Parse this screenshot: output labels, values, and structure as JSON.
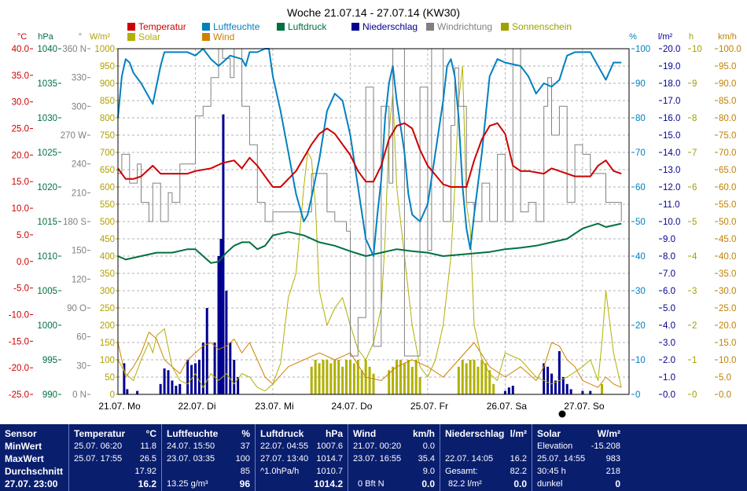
{
  "title": "Woche 21.07.14 - 27.07.14 (KW30)",
  "legend": [
    {
      "label": "Temperatur",
      "color": "#cc0000"
    },
    {
      "label": "Luftfeuchte",
      "color": "#0080c0"
    },
    {
      "label": "Luftdruck",
      "color": "#007040"
    },
    {
      "label": "Niederschlag",
      "color": "#000090"
    },
    {
      "label": "Windrichtung",
      "color": "#808080"
    },
    {
      "label": "Sonnenschein",
      "color": "#a0a000"
    },
    {
      "label": "Solar",
      "color": "#b0b000"
    },
    {
      "label": "Wind",
      "color": "#d08000"
    }
  ],
  "axes": {
    "temp": {
      "unit": "°C",
      "color": "#cc0000",
      "ticks": [
        "40.0",
        "35.0",
        "30.0",
        "25.0",
        "20.0",
        "15.0",
        "10.0",
        "5.0",
        "0.0",
        "-5.0",
        "-10.0",
        "-15.0",
        "-20.0",
        "-25.0"
      ]
    },
    "pressure": {
      "unit": "hPa",
      "color": "#007040",
      "ticks": [
        "1040",
        "1035",
        "1030",
        "1025",
        "1020",
        "1015",
        "1010",
        "1005",
        "1000",
        "995",
        "990"
      ]
    },
    "winddir": {
      "unit": "°",
      "color": "#808080",
      "ticks": [
        "360 N",
        "330",
        "300",
        "270 W",
        "240",
        "210",
        "180 S",
        "150",
        "120",
        "90 O",
        "60",
        "30",
        "0 N"
      ]
    },
    "solar": {
      "unit": "W/m²",
      "color": "#b0a000",
      "ticks": [
        "1000",
        "950",
        "900",
        "850",
        "800",
        "750",
        "700",
        "650",
        "600",
        "550",
        "500",
        "450",
        "400",
        "350",
        "300",
        "250",
        "200",
        "150",
        "100",
        "50",
        "0"
      ]
    },
    "humidity": {
      "unit": "%",
      "color": "#0080c0",
      "ticks": [
        "100",
        "90",
        "80",
        "70",
        "60",
        "50",
        "40",
        "30",
        "20",
        "10",
        "0"
      ]
    },
    "rain": {
      "unit": "l/m²",
      "color": "#000090",
      "ticks": [
        "20.0",
        "19.0",
        "18.0",
        "17.0",
        "16.0",
        "15.0",
        "14.0",
        "13.0",
        "12.0",
        "11.0",
        "10.0",
        "9.0",
        "8.0",
        "7.0",
        "6.0",
        "5.0",
        "4.0",
        "3.0",
        "2.0",
        "1.0",
        "0.0"
      ]
    },
    "sunshine": {
      "unit": "h",
      "color": "#a0a000",
      "ticks": [
        "10",
        "9",
        "8",
        "7",
        "6",
        "5",
        "4",
        "3",
        "2",
        "1",
        "0"
      ]
    },
    "wind": {
      "unit": "km/h",
      "color": "#c08000",
      "ticks": [
        "100.0",
        "95.0",
        "90.0",
        "85.0",
        "80.0",
        "75.0",
        "70.0",
        "65.0",
        "60.0",
        "55.0",
        "50.0",
        "45.0",
        "40.0",
        "35.0",
        "30.0",
        "25.0",
        "20.0",
        "15.0",
        "10.0",
        "5.0",
        "0.0"
      ]
    }
  },
  "chart_data": {
    "type": "line",
    "title": "Woche 21.07.14 - 27.07.14 (KW30)",
    "categories": [
      "21.07. Mo",
      "22.07. Di",
      "23.07. Mi",
      "24.07. Do",
      "25.07. Fr",
      "26.07. Sa",
      "27.07. So"
    ],
    "grid": true,
    "series": [
      {
        "name": "Temperatur",
        "unit": "°C",
        "ylim": [
          -25,
          40
        ],
        "x": [
          0,
          0.1,
          0.2,
          0.3,
          0.45,
          0.55,
          0.7,
          0.8,
          0.9,
          1.0,
          1.2,
          1.35,
          1.5,
          1.6,
          1.7,
          1.8,
          1.9,
          2.0,
          2.1,
          2.3,
          2.5,
          2.6,
          2.7,
          2.8,
          3.0,
          3.1,
          3.2,
          3.3,
          3.4,
          3.5,
          3.6,
          3.7,
          3.8,
          3.9,
          4.0,
          4.2,
          4.3,
          4.5,
          4.6,
          4.7,
          4.8,
          4.9,
          5.0,
          5.1,
          5.2,
          5.3,
          5.5,
          5.6,
          5.7,
          5.8,
          5.9,
          6.0,
          6.1,
          6.2,
          6.3,
          6.4,
          6.5
        ],
        "y": [
          17.5,
          15.5,
          15.5,
          16,
          18,
          16.5,
          16.5,
          16.5,
          16.5,
          17,
          17.5,
          18.5,
          19,
          17.5,
          19.5,
          18,
          16,
          14,
          14,
          17,
          22,
          24,
          25,
          24,
          20,
          17,
          15,
          15,
          18,
          23,
          25.5,
          26,
          25,
          21,
          18,
          14.5,
          14,
          14,
          19,
          23,
          25.5,
          26,
          24,
          18,
          17,
          17,
          16.5,
          17.5,
          17,
          16.5,
          16,
          16,
          16,
          18,
          19,
          17,
          16.5
        ]
      },
      {
        "name": "Luftfeuchte",
        "unit": "%",
        "ylim": [
          0,
          100
        ],
        "x": [
          0,
          0.05,
          0.1,
          0.15,
          0.2,
          0.3,
          0.45,
          0.55,
          0.6,
          0.7,
          0.8,
          0.9,
          1.0,
          1.1,
          1.2,
          1.3,
          1.45,
          1.6,
          1.65,
          1.7,
          1.8,
          1.9,
          1.95,
          2.0,
          2.1,
          2.2,
          2.3,
          2.4,
          2.45,
          2.5,
          2.6,
          2.7,
          2.8,
          2.9,
          3.0,
          3.1,
          3.2,
          3.3,
          3.35,
          3.4,
          3.45,
          3.5,
          3.55,
          3.6,
          3.7,
          3.75,
          3.8,
          3.9,
          4.0,
          4.1,
          4.2,
          4.25,
          4.3,
          4.35,
          4.4,
          4.45,
          4.5,
          4.55,
          4.6,
          4.7,
          4.8,
          4.9,
          5.0,
          5.2,
          5.3,
          5.4,
          5.5,
          5.6,
          5.7,
          5.8,
          5.9,
          6.0,
          6.1,
          6.2,
          6.3,
          6.4,
          6.5
        ],
        "y": [
          80,
          92,
          97,
          96,
          93,
          90,
          84,
          95,
          99,
          99,
          99,
          99,
          98,
          100,
          97,
          95,
          98,
          97,
          95,
          99,
          99,
          100,
          100,
          92,
          82,
          70,
          58,
          50,
          52,
          57,
          68,
          82,
          87,
          85,
          75,
          60,
          45,
          40,
          52,
          62,
          80,
          90,
          95,
          85,
          70,
          58,
          52,
          50,
          55,
          70,
          85,
          95,
          97,
          92,
          80,
          60,
          48,
          42,
          52,
          70,
          92,
          97,
          96,
          95,
          92,
          87,
          90,
          89,
          91,
          98,
          99,
          99,
          99,
          95,
          91,
          96,
          96
        ]
      },
      {
        "name": "Luftdruck",
        "unit": "hPa",
        "ylim": [
          990,
          1040
        ],
        "x": [
          0,
          0.1,
          0.3,
          0.5,
          0.7,
          0.9,
          1.0,
          1.1,
          1.2,
          1.3,
          1.4,
          1.5,
          1.6,
          1.7,
          1.8,
          1.9,
          2.0,
          2.2,
          2.4,
          2.6,
          2.8,
          3.0,
          3.2,
          3.4,
          3.6,
          3.8,
          4.0,
          4.2,
          4.4,
          4.6,
          4.8,
          5.0,
          5.2,
          5.4,
          5.6,
          5.8,
          6.0,
          6.2,
          6.3,
          6.5
        ],
        "y": [
          1010,
          1009.5,
          1010,
          1010.5,
          1010.5,
          1011,
          1011,
          1010,
          1009,
          1009.2,
          1010.5,
          1011.5,
          1012,
          1012,
          1011,
          1011.5,
          1013,
          1013.5,
          1013,
          1012,
          1011.5,
          1010.7,
          1010,
          1010.5,
          1011,
          1010.7,
          1010.5,
          1010,
          1010.2,
          1010.4,
          1010.6,
          1011,
          1011.2,
          1011.5,
          1012,
          1012.5,
          1014,
          1014.7,
          1014.2,
          1014.7
        ]
      },
      {
        "name": "Niederschlag",
        "unit": "l/m²",
        "ylim": [
          0,
          20
        ],
        "x": [
          0.08,
          0.12,
          0.25,
          0.55,
          0.6,
          0.65,
          0.7,
          0.75,
          0.8,
          0.9,
          0.95,
          1.0,
          1.05,
          1.1,
          1.15,
          1.25,
          1.3,
          1.33,
          1.36,
          1.4,
          1.45,
          1.5,
          1.55,
          5.0,
          5.05,
          5.1,
          5.5,
          5.55,
          5.6,
          5.65,
          5.7,
          5.75,
          5.8,
          5.85,
          6.0,
          6.1
        ],
        "y": [
          1.8,
          0.3,
          0.2,
          0.6,
          1.5,
          1.4,
          0.8,
          0.5,
          0.6,
          2.0,
          1.7,
          1.8,
          2.0,
          3.0,
          5.0,
          3.0,
          8.0,
          9.0,
          16.2,
          6.0,
          3.0,
          2.0,
          1.0,
          0.2,
          0.4,
          0.5,
          1.8,
          1.6,
          1.2,
          0.8,
          2.5,
          1.0,
          0.6,
          0.3,
          0.2,
          0.2
        ]
      },
      {
        "name": "Windrichtung",
        "unit": "°",
        "ylim": [
          0,
          360
        ],
        "x": [
          0,
          0.05,
          0.15,
          0.25,
          0.3,
          0.4,
          0.45,
          0.55,
          0.65,
          0.7,
          0.8,
          1.0,
          1.1,
          1.2,
          1.3,
          1.35,
          1.45,
          1.5,
          1.6,
          1.7,
          1.8,
          1.9,
          2.0,
          2.5,
          2.7,
          2.8,
          2.95,
          3.0,
          3.1,
          3.2,
          3.3,
          3.4,
          3.5,
          3.55,
          3.7,
          3.9,
          4.0,
          4.05,
          4.2,
          4.3,
          4.35,
          4.4,
          4.5,
          4.6,
          4.7,
          4.8,
          4.9,
          5.0,
          5.1,
          5.2,
          5.3,
          5.4,
          5.5,
          5.55,
          5.6,
          5.7,
          5.8,
          5.9,
          6.0,
          6.1,
          6.3,
          6.5
        ],
        "y": [
          230,
          250,
          220,
          240,
          200,
          180,
          220,
          180,
          210,
          200,
          240,
          290,
          300,
          330,
          360,
          350,
          330,
          360,
          300,
          260,
          200,
          180,
          190,
          230,
          190,
          180,
          170,
          40,
          80,
          320,
          50,
          300,
          220,
          360,
          40,
          320,
          150,
          360,
          180,
          280,
          340,
          300,
          200,
          180,
          220,
          180,
          250,
          180,
          360,
          190,
          200,
          180,
          300,
          330,
          270,
          300,
          200,
          260,
          250,
          230,
          200,
          180
        ]
      },
      {
        "name": "Solar",
        "unit": "W/m²",
        "ylim": [
          0,
          1000
        ],
        "x": [
          0,
          0.1,
          0.2,
          0.3,
          0.4,
          0.45,
          0.5,
          0.6,
          0.7,
          0.8,
          0.9,
          1.0,
          1.1,
          1.2,
          1.3,
          1.4,
          1.5,
          1.6,
          1.7,
          1.8,
          1.9,
          2.0,
          2.1,
          2.2,
          2.3,
          2.4,
          2.45,
          2.5,
          2.55,
          2.6,
          2.7,
          2.8,
          2.9,
          3.0,
          3.1,
          3.2,
          3.3,
          3.4,
          3.45,
          3.5,
          3.55,
          3.6,
          3.7,
          3.8,
          3.9,
          4.0,
          4.1,
          4.2,
          4.3,
          4.35,
          4.4,
          4.45,
          4.5,
          4.55,
          4.6,
          4.7,
          4.8,
          4.9,
          5.0,
          5.2,
          5.4,
          5.6,
          5.8,
          6.0,
          6.1,
          6.2,
          6.25,
          6.3,
          6.4,
          6.5
        ],
        "y": [
          100,
          60,
          40,
          100,
          150,
          120,
          170,
          190,
          80,
          40,
          30,
          60,
          20,
          60,
          40,
          60,
          30,
          60,
          50,
          20,
          10,
          30,
          90,
          280,
          350,
          600,
          700,
          680,
          550,
          300,
          200,
          250,
          280,
          200,
          130,
          100,
          150,
          250,
          450,
          760,
          870,
          600,
          400,
          200,
          80,
          50,
          100,
          200,
          400,
          600,
          850,
          950,
          550,
          480,
          200,
          100,
          60,
          40,
          120,
          100,
          50,
          30,
          50,
          80,
          100,
          40,
          150,
          300,
          120,
          20
        ]
      },
      {
        "name": "Sonnenschein",
        "unit": "h",
        "ylim": [
          0,
          10
        ],
        "x": [
          2.5,
          2.55,
          2.6,
          2.65,
          2.7,
          2.75,
          2.8,
          2.85,
          2.9,
          2.95,
          3.0,
          3.05,
          3.1,
          3.15,
          3.2,
          3.25,
          3.3,
          3.5,
          3.55,
          3.6,
          3.65,
          3.7,
          3.75,
          3.8,
          3.85,
          3.9,
          4.4,
          4.45,
          4.5,
          4.55,
          4.6,
          4.65,
          4.7,
          4.75,
          4.8,
          4.85,
          6.25
        ],
        "y": [
          0.8,
          1.0,
          0.9,
          1.0,
          1.0,
          0.9,
          1.0,
          1.0,
          0.8,
          1.0,
          1.0,
          0.9,
          1.0,
          0.7,
          1.0,
          0.8,
          0.6,
          0.7,
          0.8,
          1.0,
          1.0,
          0.9,
          1.0,
          0.8,
          1.0,
          0.5,
          0.8,
          1.0,
          0.9,
          1.0,
          1.0,
          0.8,
          1.0,
          0.9,
          0.7,
          0.3,
          0.3
        ]
      },
      {
        "name": "Wind",
        "unit": "km/h",
        "ylim": [
          0,
          100
        ],
        "x": [
          0,
          0.1,
          0.2,
          0.3,
          0.4,
          0.5,
          0.6,
          0.7,
          0.8,
          0.9,
          1.0,
          1.1,
          1.2,
          1.3,
          1.4,
          1.5,
          1.6,
          1.7,
          1.8,
          1.9,
          2.0,
          2.2,
          2.4,
          2.6,
          2.8,
          3.0,
          3.2,
          3.4,
          3.6,
          3.8,
          4.0,
          4.2,
          4.4,
          4.6,
          4.8,
          5.0,
          5.2,
          5.4,
          5.5,
          5.6,
          5.7,
          5.8,
          5.9,
          6.0,
          6.1,
          6.2,
          6.3,
          6.4,
          6.5
        ],
        "y": [
          15,
          5,
          8,
          12,
          18,
          16,
          10,
          8,
          6,
          10,
          12,
          14,
          15,
          13,
          14,
          16,
          12,
          15,
          10,
          5,
          3,
          8,
          10,
          12,
          10,
          12,
          5,
          4,
          8,
          10,
          8,
          5,
          10,
          15,
          8,
          5,
          8,
          4,
          8,
          15,
          14,
          10,
          8,
          4,
          3,
          2,
          5,
          3,
          2
        ]
      }
    ]
  },
  "panel": {
    "sensor": {
      "h": "Sensor",
      "r1": "MinWert",
      "r2": "MaxWert",
      "r3": "Durchschnitt",
      "r4": "27.07. 23:00"
    },
    "temperatur": {
      "h": "Temperatur",
      "u": "°C",
      "a1": "25.07. 06:20",
      "v1": "11.8",
      "a2": "25.07. 17:55",
      "v2": "26.5",
      "v3": "17.92",
      "v4": "16.2"
    },
    "luftfeuchte": {
      "h": "Luftfeuchte",
      "u": "%",
      "a1": "24.07. 15:50",
      "v1": "37",
      "a2": "23.07. 03:35",
      "v2": "100",
      "v3": "85",
      "a4": "13.25 g/m³",
      "v4": "96"
    },
    "luftdruck": {
      "h": "Luftdruck",
      "u": "hPa",
      "a1": "22.07. 04:55",
      "v1": "1007.6",
      "a2": "27.07. 13:40",
      "v2": "1014.7",
      "a3": "^1.0hPa/h",
      "v3": "1010.7",
      "v4": "1014.2"
    },
    "wind": {
      "h": "Wind",
      "u": "km/h",
      "a1": "21.07. 00:20",
      "v1": "0.0",
      "a2": "23.07. 16:55",
      "v2": "35.4",
      "v3": "9.0",
      "a4": "0 Bft N",
      "v4": "0.0"
    },
    "niederschlag": {
      "h": "Niederschlag",
      "u": "l/m²",
      "a2": "22.07. 14:05",
      "v2": "16.2",
      "a3": "Gesamt:",
      "v3": "82.2",
      "a4": "82.2 l/m²",
      "v4": "0.0"
    },
    "solar": {
      "h": "Solar",
      "u": "W/m²",
      "a1": "Elevation",
      "v1": "-15.208",
      "a2": "25.07. 14:55",
      "v2": "983",
      "a3": "30:45 h",
      "v3": "218",
      "a4": "dunkel",
      "v4": "0"
    }
  }
}
